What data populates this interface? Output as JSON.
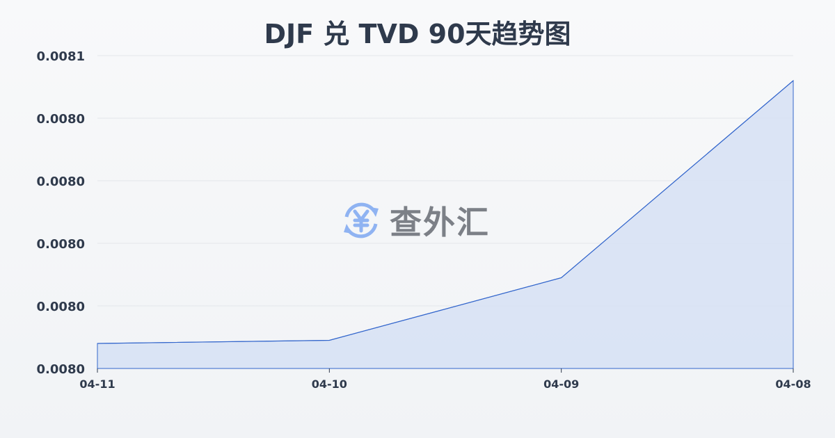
{
  "chart_data": {
    "type": "area",
    "title": "DJF 兑 TVD 90天趋势图",
    "xlabel": "",
    "ylabel": "",
    "categories": [
      "04-11",
      "04-10",
      "04-09",
      "04-08"
    ],
    "values": [
      0.008008,
      0.008009,
      0.008029,
      0.008092
    ],
    "ylim": [
      0.008,
      0.0081
    ],
    "yticks": [
      0.008,
      0.00802,
      0.00804,
      0.00806,
      0.00808,
      0.0081
    ],
    "ytick_labels": [
      "0.0080",
      "0.0080",
      "0.0080",
      "0.0080",
      "0.0080",
      "0.0081"
    ],
    "grid": true,
    "colors": {
      "line": "#3366cc",
      "fill": "#d6e0f5"
    }
  },
  "watermark": {
    "text": "查外汇",
    "icon": "yen-exchange-icon"
  }
}
